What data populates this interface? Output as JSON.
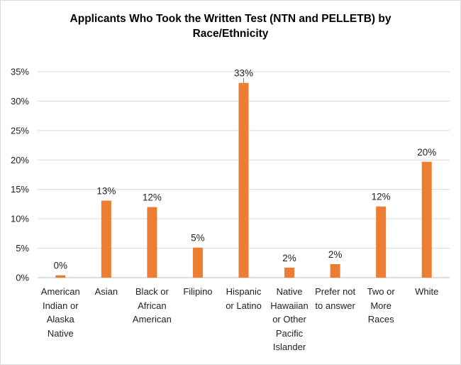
{
  "chart_data": {
    "type": "bar",
    "title_line1": "Applicants Who Took the Written Test (NTN and PELLETB) by",
    "title_line2": "Race/Ethnicity",
    "categories": [
      "American\nIndian or\nAlaska\nNative",
      "Asian",
      "Black or\nAfrican\nAmerican",
      "Filipino",
      "Hispanic\nor Latino",
      "Native\nHawaiian\nor Other\nPacific\nIslander",
      "Prefer not\nto answer",
      "Two or\nMore\nRaces",
      "White"
    ],
    "values": [
      0.4,
      13.1,
      12.0,
      5.1,
      33.1,
      1.7,
      2.3,
      12.1,
      19.7
    ],
    "data_labels": [
      "0%",
      "13%",
      "12%",
      "5%",
      "33%",
      "2%",
      "2%",
      "12%",
      "20%"
    ],
    "yticks": [
      "0%",
      "5%",
      "10%",
      "15%",
      "20%",
      "25%",
      "30%",
      "35%"
    ],
    "ylim": [
      0,
      35
    ],
    "grid": true,
    "bar_color": "#ED7D31",
    "grid_color": "#d9d9d9"
  }
}
